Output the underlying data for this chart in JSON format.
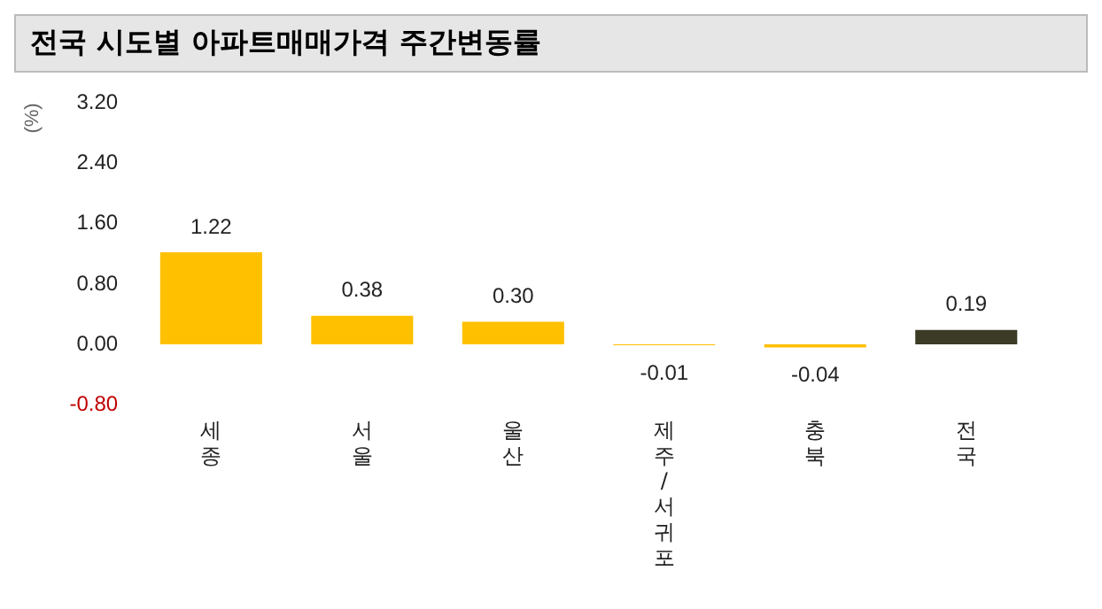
{
  "chart_data": {
    "type": "bar",
    "title": "전국 시도별 아파트매매가격 주간변동률",
    "ylabel": "(%)",
    "categories": [
      "세종",
      "서울",
      "울산",
      "제주/서귀포",
      "충북",
      "전국"
    ],
    "values": [
      1.22,
      0.38,
      0.3,
      -0.01,
      -0.04,
      0.19
    ],
    "colors": [
      "#ffc000",
      "#ffc000",
      "#ffc000",
      "#ffc000",
      "#ffc000",
      "#3b3b26"
    ],
    "ylim": [
      -0.8,
      3.2
    ],
    "yticks": [
      {
        "value": -0.8,
        "label": "-0.80"
      },
      {
        "value": 0,
        "label": "0.00"
      },
      {
        "value": 0.8,
        "label": "0.80"
      },
      {
        "value": 1.6,
        "label": "1.60"
      },
      {
        "value": 2.4,
        "label": "2.40"
      },
      {
        "value": 3.2,
        "label": "3.20"
      }
    ],
    "value_labels": [
      "1.22",
      "0.38",
      "0.30",
      "-0.01",
      "-0.04",
      "0.19"
    ],
    "grid": false,
    "legend": false
  }
}
